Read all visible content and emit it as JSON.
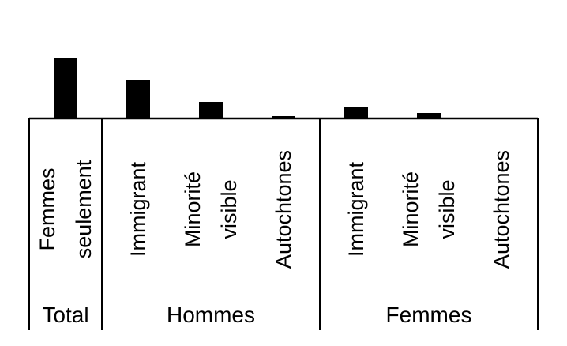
{
  "chart_data": {
    "type": "bar",
    "title": "",
    "xlabel": "",
    "ylabel": "",
    "ylim": [
      0,
      80
    ],
    "grid": false,
    "legend": "none",
    "bar_color": "#000000",
    "groups": [
      {
        "name": "Total",
        "span": 1
      },
      {
        "name": "Hommes",
        "span": 3
      },
      {
        "name": "Femmes",
        "span": 3
      }
    ],
    "categories": [
      {
        "lines": [
          "Femmes",
          "seulement"
        ]
      },
      {
        "lines": [
          "Immigrant"
        ]
      },
      {
        "lines": [
          "Minorité",
          "visible"
        ]
      },
      {
        "lines": [
          "Autochtones"
        ]
      },
      {
        "lines": [
          "Immigrant"
        ]
      },
      {
        "lines": [
          "Minorité",
          "visible"
        ]
      },
      {
        "lines": [
          "Autochtones"
        ]
      }
    ],
    "values": [
      77,
      49,
      21,
      3,
      14,
      7,
      1
    ]
  }
}
